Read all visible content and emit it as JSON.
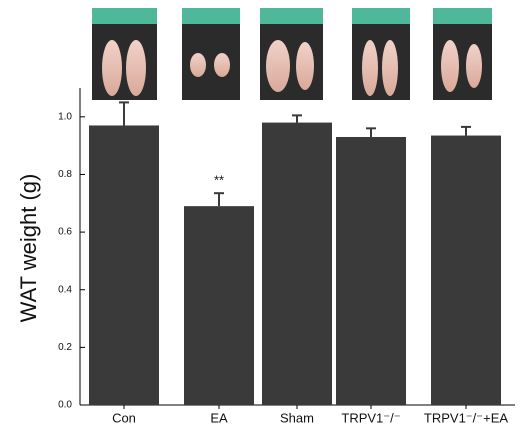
{
  "chart_data": {
    "type": "bar",
    "y_label": "WAT weight (g)",
    "categories": [
      "Con",
      "EA",
      "Sham",
      "TRPV1⁻/⁻",
      "TRPV1⁻/⁻+EA"
    ],
    "values": [
      0.97,
      0.69,
      0.98,
      0.93,
      0.935
    ],
    "errors": [
      0.08,
      0.045,
      0.025,
      0.03,
      0.03
    ],
    "annotations": [
      {
        "category": 1,
        "text": "**"
      }
    ],
    "color": "#3a3a3a",
    "ylim": [
      0,
      1.1
    ],
    "yticks": [
      {
        "value": 0,
        "label": "0.0"
      },
      {
        "value": 0.2,
        "label": "0.2"
      },
      {
        "value": 0.4,
        "label": "0.4"
      },
      {
        "value": 0.6,
        "label": "0.6"
      },
      {
        "value": 0.8,
        "label": "0.8"
      },
      {
        "value": 1.0,
        "label": "1.0"
      }
    ]
  }
}
